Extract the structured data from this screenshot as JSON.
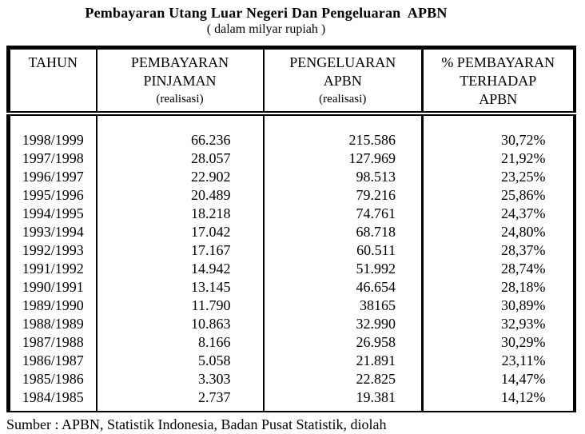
{
  "page": {
    "title": "Pembayaran Utang Luar Negeri Dan Pengeluaran  APBN",
    "subtitle": "( dalam milyar rupiah )",
    "source_note": "Sumber : APBN, Statistik Indonesia, Badan Pusat Statistik, diolah"
  },
  "colors": {
    "text": "#000000",
    "background": "#ffffff",
    "border": "#000000"
  },
  "table": {
    "headers": [
      {
        "lines": [
          "TAHUN"
        ]
      },
      {
        "lines": [
          "PEMBAYARAN",
          "PINJAMAN",
          "(realisasi)"
        ]
      },
      {
        "lines": [
          "PENGELUARAN",
          "APBN",
          "(realisasi)"
        ]
      },
      {
        "lines": [
          "% PEMBAYARAN",
          "TERHADAP",
          "APBN"
        ]
      }
    ],
    "rows": [
      {
        "tahun": "1998/1999",
        "pembayaran_pinjaman": "66.236",
        "pengeluaran_apbn": "215.586",
        "persen_pembayaran": "30,72%"
      },
      {
        "tahun": "1997/1998",
        "pembayaran_pinjaman": "28.057",
        "pengeluaran_apbn": "127.969",
        "persen_pembayaran": "21,92%"
      },
      {
        "tahun": "1996/1997",
        "pembayaran_pinjaman": "22.902",
        "pengeluaran_apbn": "98.513",
        "persen_pembayaran": "23,25%"
      },
      {
        "tahun": "1995/1996",
        "pembayaran_pinjaman": "20.489",
        "pengeluaran_apbn": "79.216",
        "persen_pembayaran": "25,86%"
      },
      {
        "tahun": "1994/1995",
        "pembayaran_pinjaman": "18.218",
        "pengeluaran_apbn": "74.761",
        "persen_pembayaran": "24,37%"
      },
      {
        "tahun": "1993/1994",
        "pembayaran_pinjaman": "17.042",
        "pengeluaran_apbn": "68.718",
        "persen_pembayaran": "24,80%"
      },
      {
        "tahun": "1992/1993",
        "pembayaran_pinjaman": "17.167",
        "pengeluaran_apbn": "60.511",
        "persen_pembayaran": "28,37%"
      },
      {
        "tahun": "1991/1992",
        "pembayaran_pinjaman": "14.942",
        "pengeluaran_apbn": "51.992",
        "persen_pembayaran": "28,74%"
      },
      {
        "tahun": "1990/1991",
        "pembayaran_pinjaman": "13.145",
        "pengeluaran_apbn": "46.654",
        "persen_pembayaran": "28,18%"
      },
      {
        "tahun": "1989/1990",
        "pembayaran_pinjaman": "11.790",
        "pengeluaran_apbn": "38165",
        "persen_pembayaran": "30,89%"
      },
      {
        "tahun": "1988/1989",
        "pembayaran_pinjaman": "10.863",
        "pengeluaran_apbn": "32.990",
        "persen_pembayaran": "32,93%"
      },
      {
        "tahun": "1987/1988",
        "pembayaran_pinjaman": "8.166",
        "pengeluaran_apbn": "26.958",
        "persen_pembayaran": "30,29%"
      },
      {
        "tahun": "1986/1987",
        "pembayaran_pinjaman": "5.058",
        "pengeluaran_apbn": "21.891",
        "persen_pembayaran": "23,11%"
      },
      {
        "tahun": "1985/1986",
        "pembayaran_pinjaman": "3.303",
        "pengeluaran_apbn": "22.825",
        "persen_pembayaran": "14,47%"
      },
      {
        "tahun": "1984/1985",
        "pembayaran_pinjaman": "2.737",
        "pengeluaran_apbn": "19.381",
        "persen_pembayaran": "14,12%"
      }
    ]
  }
}
